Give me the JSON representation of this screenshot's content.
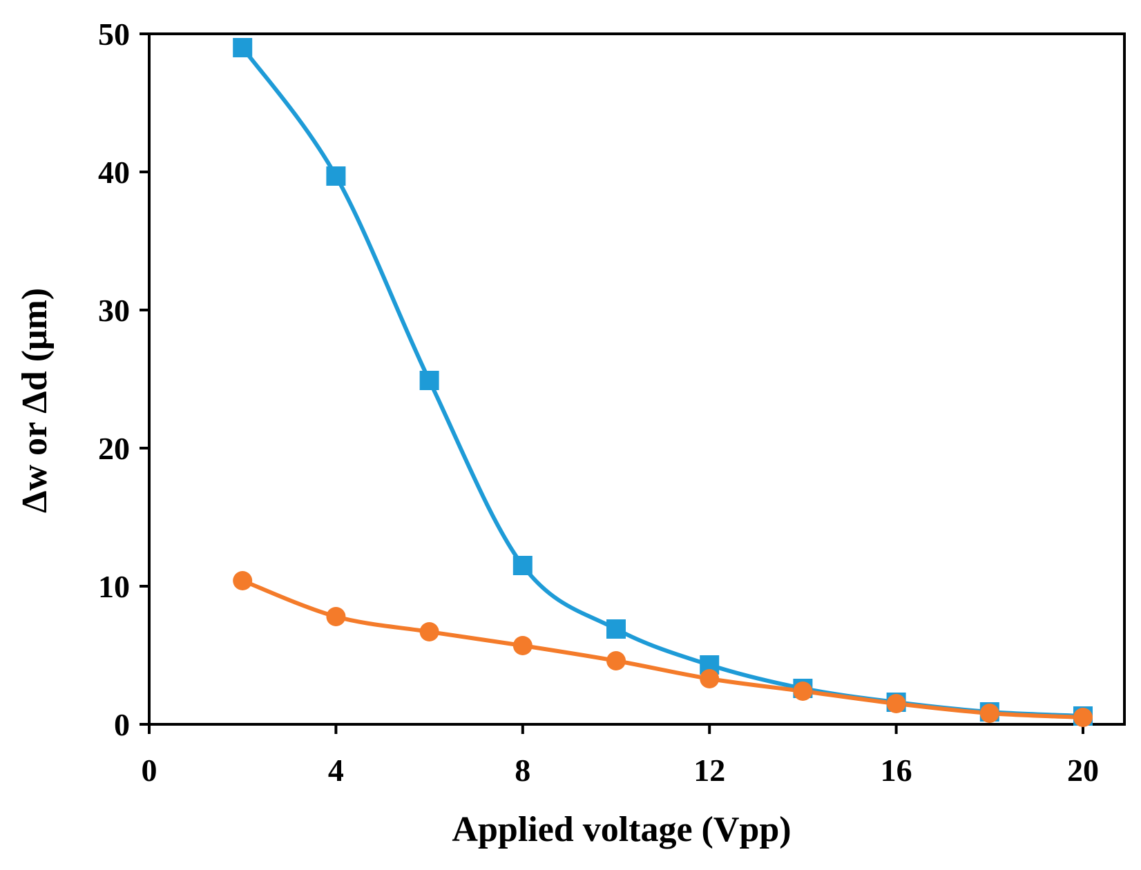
{
  "chart_data": {
    "type": "line",
    "title": "",
    "xlabel": "Applied voltage (Vpp)",
    "ylabel": "Δw or Δd (μm)",
    "xlim": [
      0,
      21
    ],
    "ylim": [
      0,
      50
    ],
    "xticks": [
      0,
      4,
      8,
      12,
      16,
      20
    ],
    "xtick_labels": [
      "0",
      "4",
      "8",
      "12",
      "16",
      "20"
    ],
    "yticks": [
      0,
      10,
      20,
      30,
      40,
      50
    ],
    "ytick_labels": [
      "0",
      "10",
      "20",
      "30",
      "40",
      "50"
    ],
    "grid": false,
    "legend": "none",
    "x": [
      2,
      4,
      6,
      8,
      10,
      12,
      14,
      16,
      18,
      20
    ],
    "series": [
      {
        "name": "Δw",
        "marker": "square",
        "color": "#1E9BD7",
        "values": [
          49.0,
          39.7,
          24.9,
          11.5,
          6.9,
          4.3,
          2.6,
          1.6,
          0.9,
          0.6
        ]
      },
      {
        "name": "Δd",
        "marker": "circle",
        "color": "#F47B2A",
        "values": [
          10.4,
          7.8,
          6.7,
          5.7,
          4.6,
          3.3,
          2.4,
          1.5,
          0.8,
          0.5
        ]
      }
    ]
  }
}
